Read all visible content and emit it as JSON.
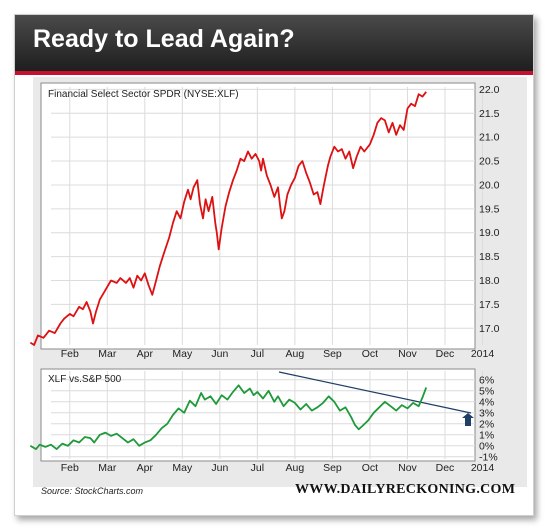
{
  "banner": {
    "title": "Ready to Lead Again?",
    "accent": "#c8102e"
  },
  "footer": {
    "source": "Source: StockCharts.com",
    "website": "WWW.DAILYRECKONING.COM"
  },
  "chart_data": [
    {
      "type": "line",
      "title": "Financial Select Sector SPDR (NYSE:XLF)",
      "x_labels": [
        "Feb",
        "Mar",
        "Apr",
        "May",
        "Jun",
        "Jul",
        "Aug",
        "Sep",
        "Oct",
        "Nov",
        "Dec",
        "2014"
      ],
      "y_ticks": [
        "17.0",
        "17.5",
        "18.0",
        "18.5",
        "19.0",
        "19.5",
        "20.0",
        "20.5",
        "21.0",
        "21.5",
        "22.0"
      ],
      "ylim": [
        16.65,
        22.05
      ],
      "xlim": [
        0,
        11.3
      ],
      "grid": true,
      "series": [
        {
          "color": "#dd1111",
          "points": [
            [
              -0.55,
              16.7
            ],
            [
              -0.45,
              16.65
            ],
            [
              -0.35,
              16.85
            ],
            [
              -0.2,
              16.8
            ],
            [
              -0.05,
              16.95
            ],
            [
              0.1,
              16.9
            ],
            [
              0.25,
              17.1
            ],
            [
              0.35,
              17.2
            ],
            [
              0.5,
              17.3
            ],
            [
              0.6,
              17.25
            ],
            [
              0.75,
              17.45
            ],
            [
              0.85,
              17.4
            ],
            [
              0.95,
              17.55
            ],
            [
              1.05,
              17.35
            ],
            [
              1.12,
              17.1
            ],
            [
              1.2,
              17.35
            ],
            [
              1.3,
              17.6
            ],
            [
              1.45,
              17.8
            ],
            [
              1.6,
              18.0
            ],
            [
              1.75,
              17.95
            ],
            [
              1.85,
              18.05
            ],
            [
              2.0,
              17.95
            ],
            [
              2.1,
              18.05
            ],
            [
              2.2,
              17.85
            ],
            [
              2.3,
              18.1
            ],
            [
              2.4,
              18.0
            ],
            [
              2.5,
              18.15
            ],
            [
              2.6,
              17.9
            ],
            [
              2.7,
              17.7
            ],
            [
              2.8,
              18.0
            ],
            [
              2.9,
              18.3
            ],
            [
              3.0,
              18.55
            ],
            [
              3.15,
              18.9
            ],
            [
              3.25,
              19.2
            ],
            [
              3.35,
              19.45
            ],
            [
              3.45,
              19.3
            ],
            [
              3.55,
              19.65
            ],
            [
              3.65,
              19.9
            ],
            [
              3.72,
              19.7
            ],
            [
              3.8,
              19.95
            ],
            [
              3.9,
              20.1
            ],
            [
              3.97,
              19.6
            ],
            [
              4.05,
              19.3
            ],
            [
              4.12,
              19.7
            ],
            [
              4.2,
              19.45
            ],
            [
              4.3,
              19.75
            ],
            [
              4.38,
              19.2
            ],
            [
              4.42,
              19.0
            ],
            [
              4.47,
              18.65
            ],
            [
              4.55,
              19.1
            ],
            [
              4.65,
              19.55
            ],
            [
              4.75,
              19.85
            ],
            [
              4.85,
              20.1
            ],
            [
              4.95,
              20.3
            ],
            [
              5.05,
              20.55
            ],
            [
              5.15,
              20.5
            ],
            [
              5.25,
              20.7
            ],
            [
              5.35,
              20.55
            ],
            [
              5.45,
              20.65
            ],
            [
              5.55,
              20.5
            ],
            [
              5.6,
              20.3
            ],
            [
              5.65,
              20.55
            ],
            [
              5.75,
              20.2
            ],
            [
              5.85,
              20.0
            ],
            [
              5.95,
              19.75
            ],
            [
              6.05,
              19.95
            ],
            [
              6.1,
              19.6
            ],
            [
              6.15,
              19.3
            ],
            [
              6.22,
              19.45
            ],
            [
              6.3,
              19.8
            ],
            [
              6.4,
              20.0
            ],
            [
              6.5,
              20.15
            ],
            [
              6.6,
              20.4
            ],
            [
              6.7,
              20.5
            ],
            [
              6.8,
              20.25
            ],
            [
              6.9,
              20.05
            ],
            [
              7.0,
              19.8
            ],
            [
              7.1,
              19.85
            ],
            [
              7.18,
              19.6
            ],
            [
              7.25,
              19.9
            ],
            [
              7.3,
              20.1
            ],
            [
              7.38,
              20.4
            ],
            [
              7.45,
              20.6
            ],
            [
              7.55,
              20.8
            ],
            [
              7.65,
              20.7
            ],
            [
              7.75,
              20.75
            ],
            [
              7.85,
              20.55
            ],
            [
              7.95,
              20.7
            ],
            [
              8.05,
              20.35
            ],
            [
              8.15,
              20.6
            ],
            [
              8.25,
              20.8
            ],
            [
              8.35,
              20.7
            ],
            [
              8.5,
              20.85
            ],
            [
              8.6,
              21.05
            ],
            [
              8.7,
              21.3
            ],
            [
              8.8,
              21.4
            ],
            [
              8.9,
              21.35
            ],
            [
              9.0,
              21.1
            ],
            [
              9.1,
              21.3
            ],
            [
              9.2,
              21.05
            ],
            [
              9.3,
              21.25
            ],
            [
              9.4,
              21.15
            ],
            [
              9.5,
              21.6
            ],
            [
              9.6,
              21.7
            ],
            [
              9.7,
              21.65
            ],
            [
              9.8,
              21.9
            ],
            [
              9.9,
              21.85
            ],
            [
              10.0,
              21.95
            ]
          ]
        }
      ]
    },
    {
      "type": "line",
      "title": "XLF vs.S&P 500",
      "x_labels": [
        "Feb",
        "Mar",
        "Apr",
        "May",
        "Jun",
        "Jul",
        "Aug",
        "Sep",
        "Oct",
        "Nov",
        "Dec",
        "2014"
      ],
      "y_ticks": [
        "-1%",
        "0%",
        "1%",
        "2%",
        "3%",
        "4%",
        "5%",
        "6%"
      ],
      "ylim": [
        -1.2,
        6.8
      ],
      "xlim": [
        0,
        11.3
      ],
      "grid": true,
      "series": [
        {
          "color": "#1e9a3a",
          "points": [
            [
              -0.55,
              0.0
            ],
            [
              -0.4,
              -0.3
            ],
            [
              -0.3,
              0.1
            ],
            [
              -0.15,
              -0.1
            ],
            [
              0.0,
              0.1
            ],
            [
              0.15,
              -0.3
            ],
            [
              0.3,
              0.2
            ],
            [
              0.45,
              0.0
            ],
            [
              0.6,
              0.5
            ],
            [
              0.75,
              0.3
            ],
            [
              0.9,
              0.8
            ],
            [
              1.05,
              0.7
            ],
            [
              1.15,
              0.3
            ],
            [
              1.3,
              1.0
            ],
            [
              1.45,
              1.2
            ],
            [
              1.6,
              0.9
            ],
            [
              1.75,
              1.1
            ],
            [
              1.9,
              0.7
            ],
            [
              2.05,
              0.3
            ],
            [
              2.2,
              0.6
            ],
            [
              2.35,
              0.0
            ],
            [
              2.5,
              0.3
            ],
            [
              2.65,
              0.5
            ],
            [
              2.8,
              1.0
            ],
            [
              2.95,
              1.6
            ],
            [
              3.1,
              2.0
            ],
            [
              3.25,
              2.8
            ],
            [
              3.4,
              3.4
            ],
            [
              3.55,
              3.0
            ],
            [
              3.7,
              4.1
            ],
            [
              3.85,
              3.6
            ],
            [
              4.0,
              4.8
            ],
            [
              4.1,
              4.2
            ],
            [
              4.25,
              4.5
            ],
            [
              4.4,
              3.8
            ],
            [
              4.55,
              4.6
            ],
            [
              4.7,
              4.2
            ],
            [
              4.85,
              4.9
            ],
            [
              5.0,
              5.5
            ],
            [
              5.15,
              4.8
            ],
            [
              5.3,
              5.2
            ],
            [
              5.4,
              4.6
            ],
            [
              5.5,
              4.9
            ],
            [
              5.65,
              4.3
            ],
            [
              5.8,
              5.0
            ],
            [
              5.95,
              4.0
            ],
            [
              6.05,
              4.5
            ],
            [
              6.2,
              3.6
            ],
            [
              6.35,
              4.2
            ],
            [
              6.5,
              3.9
            ],
            [
              6.65,
              3.3
            ],
            [
              6.8,
              3.8
            ],
            [
              6.95,
              3.2
            ],
            [
              7.1,
              3.5
            ],
            [
              7.25,
              3.9
            ],
            [
              7.4,
              4.5
            ],
            [
              7.55,
              4.0
            ],
            [
              7.7,
              3.2
            ],
            [
              7.85,
              3.5
            ],
            [
              8.0,
              2.6
            ],
            [
              8.1,
              1.9
            ],
            [
              8.2,
              1.5
            ],
            [
              8.3,
              1.8
            ],
            [
              8.45,
              2.3
            ],
            [
              8.6,
              3.0
            ],
            [
              8.75,
              3.5
            ],
            [
              8.9,
              4.0
            ],
            [
              9.05,
              3.6
            ],
            [
              9.2,
              3.2
            ],
            [
              9.35,
              3.7
            ],
            [
              9.5,
              3.4
            ],
            [
              9.65,
              3.9
            ],
            [
              9.8,
              3.6
            ],
            [
              9.9,
              4.4
            ],
            [
              10.0,
              5.3
            ]
          ]
        }
      ]
    }
  ]
}
